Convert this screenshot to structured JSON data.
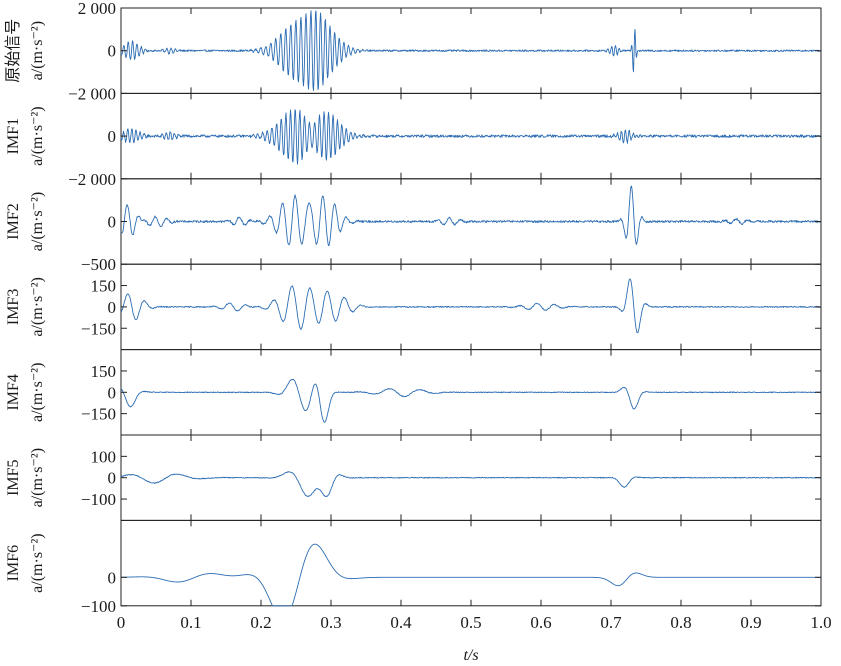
{
  "chart_data": {
    "type": "line",
    "layout": "stacked-subplots",
    "shared_x": {
      "label": "t/s",
      "ticks": [
        0,
        0.1,
        0.2,
        0.3,
        0.4,
        0.5,
        0.6,
        0.7,
        0.8,
        0.9,
        1.0
      ],
      "tick_labels": [
        "0",
        "0.1",
        "0.2",
        "0.3",
        "0.4",
        "0.5",
        "0.6",
        "0.7",
        "0.8",
        "0.9",
        "1.0"
      ],
      "xlim": [
        0,
        1.0
      ]
    },
    "line_color": "#2d6db3",
    "grid": false,
    "panels": [
      {
        "name": "原始信号",
        "ylabel": "a/(m·s⁻²)",
        "ylim": [
          -2000,
          2000
        ],
        "y_ticks": [
          2000,
          0,
          -2000
        ],
        "y_tick_labels": [
          "2 000",
          "0",
          "−2 000"
        ],
        "events": [
          {
            "t": 0.015,
            "width": 0.015,
            "amp": 450,
            "freq": 160
          },
          {
            "t": 0.07,
            "width": 0.01,
            "amp": 150,
            "freq": 160
          },
          {
            "t": 0.255,
            "width": 0.035,
            "amp": 1500,
            "freq": 140
          },
          {
            "t": 0.29,
            "width": 0.03,
            "amp": 1100,
            "freq": 150
          },
          {
            "t": 0.705,
            "width": 0.008,
            "amp": 280,
            "freq": 180
          },
          {
            "t": 0.733,
            "width": 0.003,
            "amp": 1200,
            "freq": 200
          }
        ],
        "noise": 40
      },
      {
        "name": "IMF1",
        "ylabel": "a/(m·s⁻²)",
        "ylim": [
          -2000,
          2000
        ],
        "y_ticks": [
          0,
          -2000
        ],
        "y_tick_labels": [
          "0",
          "−2 000"
        ],
        "events": [
          {
            "t": 0.015,
            "width": 0.015,
            "amp": 350,
            "freq": 170
          },
          {
            "t": 0.07,
            "width": 0.012,
            "amp": 180,
            "freq": 170
          },
          {
            "t": 0.255,
            "width": 0.035,
            "amp": 1400,
            "freq": 150
          },
          {
            "t": 0.29,
            "width": 0.03,
            "amp": 1000,
            "freq": 160
          },
          {
            "t": 0.72,
            "width": 0.012,
            "amp": 320,
            "freq": 180
          }
        ],
        "noise": 60
      },
      {
        "name": "IMF2",
        "ylabel": "a/(m·s⁻²)",
        "ylim": [
          -500,
          500
        ],
        "y_ticks": [
          0,
          -500
        ],
        "y_tick_labels": [
          "0",
          "−500"
        ],
        "events": [
          {
            "t": 0.01,
            "width": 0.015,
            "amp": 200,
            "freq": 60
          },
          {
            "t": 0.05,
            "width": 0.02,
            "amp": 60,
            "freq": 60
          },
          {
            "t": 0.17,
            "width": 0.015,
            "amp": 50,
            "freq": 60
          },
          {
            "t": 0.25,
            "width": 0.03,
            "amp": 320,
            "freq": 55
          },
          {
            "t": 0.29,
            "width": 0.025,
            "amp": 280,
            "freq": 60
          },
          {
            "t": 0.47,
            "width": 0.02,
            "amp": 40,
            "freq": 60
          },
          {
            "t": 0.73,
            "width": 0.01,
            "amp": 420,
            "freq": 60
          },
          {
            "t": 0.88,
            "width": 0.02,
            "amp": 30,
            "freq": 60
          }
        ],
        "noise": 12
      },
      {
        "name": "IMF3",
        "ylabel": "a/(m·s⁻²)",
        "ylim": [
          -300,
          300
        ],
        "y_ticks": [
          150,
          0,
          -150
        ],
        "y_tick_labels": [
          "150",
          "0",
          "−150"
        ],
        "events": [
          {
            "t": 0.015,
            "width": 0.02,
            "amp": 100,
            "freq": 40
          },
          {
            "t": 0.16,
            "width": 0.02,
            "amp": 30,
            "freq": 40
          },
          {
            "t": 0.25,
            "width": 0.03,
            "amp": 150,
            "freq": 38
          },
          {
            "t": 0.3,
            "width": 0.03,
            "amp": 100,
            "freq": 40
          },
          {
            "t": 0.6,
            "width": 0.03,
            "amp": 25,
            "freq": 40
          },
          {
            "t": 0.732,
            "width": 0.012,
            "amp": 240,
            "freq": 38
          }
        ],
        "noise": 4
      },
      {
        "name": "IMF4",
        "ylabel": "a/(m·s⁻²)",
        "ylim": [
          -300,
          300
        ],
        "y_ticks": [
          150,
          0,
          -150
        ],
        "y_tick_labels": [
          "150",
          "0",
          "−150"
        ],
        "events": [
          {
            "t": 0.01,
            "width": 0.015,
            "amp": 110,
            "freq": 20
          },
          {
            "t": 0.26,
            "width": 0.025,
            "amp": 140,
            "freq": 22
          },
          {
            "t": 0.287,
            "width": 0.012,
            "amp": 270,
            "freq": 20
          },
          {
            "t": 0.4,
            "width": 0.04,
            "amp": 30,
            "freq": 22
          },
          {
            "t": 0.73,
            "width": 0.012,
            "amp": 130,
            "freq": 22
          }
        ],
        "noise": 3
      },
      {
        "name": "IMF5",
        "ylabel": "a/(m·s⁻²)",
        "ylim": [
          -200,
          200
        ],
        "y_ticks": [
          100,
          0,
          -100
        ],
        "y_tick_labels": [
          "100",
          "0",
          "−100"
        ],
        "events": [
          {
            "t": 0.05,
            "width": 0.05,
            "amp": 25,
            "freq": 14
          },
          {
            "t": 0.27,
            "width": 0.03,
            "amp": 90,
            "freq": 15
          },
          {
            "t": 0.295,
            "width": 0.015,
            "amp": 130,
            "freq": 14
          },
          {
            "t": 0.72,
            "width": 0.012,
            "amp": 45,
            "freq": 16
          }
        ],
        "noise": 2
      },
      {
        "name": "IMF6",
        "ylabel": "a/(m·s⁻²)",
        "ylim": [
          -100,
          200
        ],
        "y_ticks": [
          0,
          -100
        ],
        "y_tick_labels": [
          "0",
          "−100"
        ],
        "events": [
          {
            "t": 0.25,
            "width": 0.045,
            "amp": 190,
            "freq": 8
          },
          {
            "t": 0.1,
            "width": 0.05,
            "amp": 20,
            "freq": 8
          },
          {
            "t": 0.72,
            "width": 0.02,
            "amp": 50,
            "freq": 9
          }
        ],
        "noise": 0
      }
    ]
  }
}
